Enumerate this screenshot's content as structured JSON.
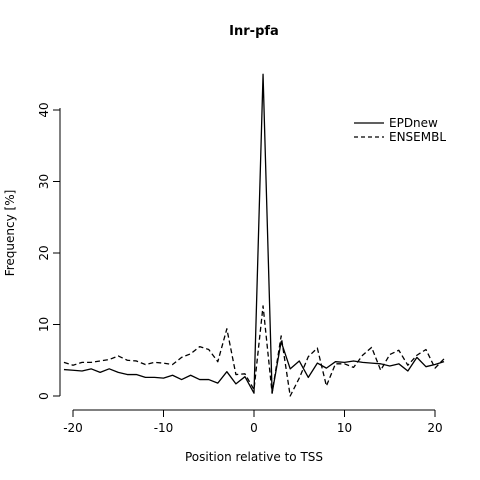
{
  "chart_data": {
    "type": "line",
    "title": "Inr-pfa",
    "xlabel": "Position relative to TSS",
    "ylabel": "Frequency [%]",
    "xlim": [
      -21.5,
      21.5
    ],
    "ylim": [
      0,
      45
    ],
    "x_ticks": [
      -20,
      -10,
      0,
      10,
      20
    ],
    "y_ticks": [
      0,
      10,
      20,
      30,
      40
    ],
    "x_tick_labels": [
      "-20",
      "-10",
      "0",
      "10",
      "20"
    ],
    "y_tick_labels": [
      "0",
      "10",
      "20",
      "30",
      "40"
    ],
    "legend_position": "top-right",
    "grid": false,
    "x": [
      -21,
      -20,
      -19,
      -18,
      -17,
      -16,
      -15,
      -14,
      -13,
      -12,
      -11,
      -10,
      -9,
      -8,
      -7,
      -6,
      -5,
      -4,
      -3,
      -2,
      -1,
      0,
      1,
      2,
      3,
      4,
      5,
      6,
      7,
      8,
      9,
      10,
      11,
      12,
      13,
      14,
      15,
      16,
      17,
      18,
      19,
      20,
      21
    ],
    "series": [
      {
        "name": "EPDnew",
        "style": "solid",
        "values": [
          3.7,
          3.6,
          3.5,
          3.8,
          3.3,
          3.8,
          3.3,
          3.0,
          3.0,
          2.6,
          2.6,
          2.5,
          2.9,
          2.3,
          2.9,
          2.3,
          2.3,
          1.8,
          3.4,
          1.7,
          2.7,
          0.4,
          45.0,
          0.4,
          7.6,
          3.8,
          4.9,
          2.6,
          4.6,
          3.9,
          4.8,
          4.7,
          4.9,
          4.7,
          4.6,
          4.5,
          4.2,
          4.5,
          3.5,
          5.4,
          4.1,
          4.4,
          4.8
        ]
      },
      {
        "name": "ENSEMBL",
        "style": "dashed",
        "values": [
          4.7,
          4.3,
          4.7,
          4.7,
          4.9,
          5.1,
          5.6,
          5.0,
          4.9,
          4.4,
          4.7,
          4.6,
          4.4,
          5.4,
          5.9,
          6.9,
          6.5,
          4.8,
          9.4,
          3.0,
          3.1,
          0.9,
          12.6,
          0.4,
          8.4,
          0.0,
          2.5,
          5.5,
          6.7,
          1.4,
          4.5,
          4.5,
          4.0,
          5.7,
          6.8,
          3.6,
          5.8,
          6.4,
          4.3,
          5.7,
          6.5,
          3.9,
          5.2
        ]
      }
    ]
  }
}
